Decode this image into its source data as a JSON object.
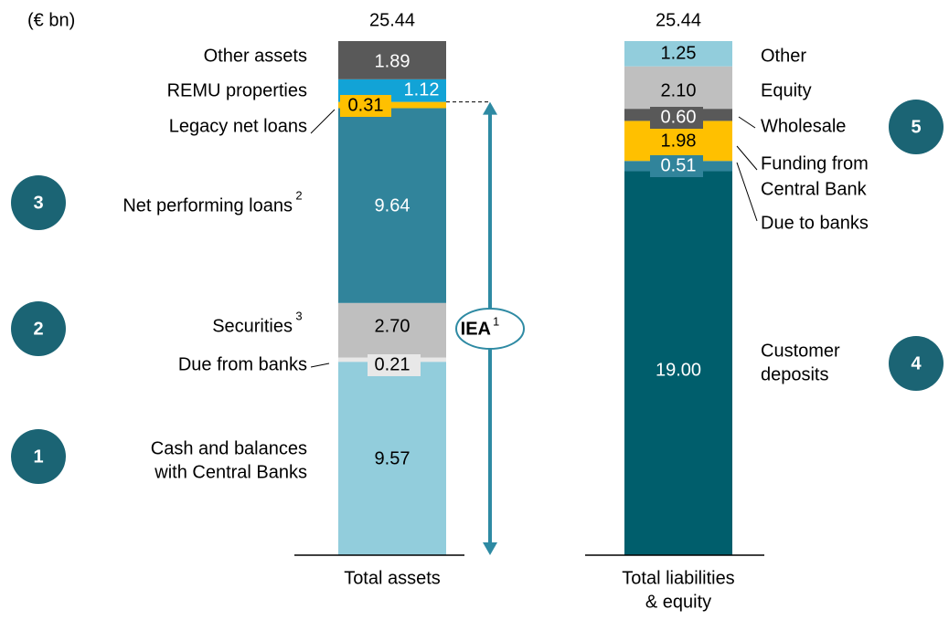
{
  "chart_data": {
    "type": "stacked_bar",
    "unit_note": "(€ bn)",
    "stacks": [
      {
        "category": [
          "Total assets"
        ],
        "total": 25.44,
        "label_side": "left",
        "segments": [
          {
            "name": [
              "Cash and balances",
              "with Central Banks"
            ],
            "value": 9.57,
            "color": "#92cddc",
            "label_color": "#000000"
          },
          {
            "name": [
              "Due from banks"
            ],
            "value": 0.21,
            "color": "#e8e8e8",
            "label_color": "#000000"
          },
          {
            "name": [
              "Securities"
            ],
            "footnote": "3",
            "value": 2.7,
            "value_label": "2.70",
            "color": "#bfbfbf",
            "label_color": "#000000"
          },
          {
            "name": [
              "Net performing loans"
            ],
            "footnote": "2",
            "value": 9.64,
            "color": "#31849b",
            "label_color": "#ffffff"
          },
          {
            "name": [
              "Legacy net loans"
            ],
            "value": 0.31,
            "color": "#ffc000",
            "label_color": "#000000"
          },
          {
            "name": [
              "REMU properties"
            ],
            "value": 1.12,
            "color": "#12a3d6",
            "label_color": "#ffffff"
          },
          {
            "name": [
              "Other assets"
            ],
            "value": 1.89,
            "color": "#595959",
            "label_color": "#ffffff"
          }
        ]
      },
      {
        "category": [
          "Total liabilities",
          "& equity"
        ],
        "total": 25.44,
        "label_side": "right",
        "segments": [
          {
            "name": [
              "Customer",
              "deposits"
            ],
            "value": 19.0,
            "value_label": "19.00",
            "color": "#005e6c",
            "label_color": "#ffffff"
          },
          {
            "name": [
              "Due to banks"
            ],
            "value": 0.51,
            "color": "#31849b",
            "label_color": "#ffffff"
          },
          {
            "name": [
              "Funding from",
              "Central Bank"
            ],
            "value": 1.98,
            "color": "#ffc000",
            "label_color": "#000000"
          },
          {
            "name": [
              "Wholesale"
            ],
            "value": 0.6,
            "value_label": "0.60",
            "color": "#595959",
            "label_color": "#ffffff"
          },
          {
            "name": [
              "Equity"
            ],
            "value": 2.1,
            "value_label": "2.10",
            "color": "#bfbfbf",
            "label_color": "#000000"
          },
          {
            "name": [
              "Other"
            ],
            "value": 1.25,
            "color": "#92cddc",
            "label_color": "#000000"
          }
        ]
      }
    ],
    "iea": {
      "text": "IEA",
      "footnote": "1"
    },
    "callouts": [
      "1",
      "2",
      "3",
      "4",
      "5"
    ],
    "callout_color": "#1b6474",
    "arrow_color": "#2e8aa3"
  }
}
